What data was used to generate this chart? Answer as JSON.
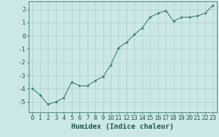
{
  "x": [
    0,
    1,
    2,
    3,
    4,
    5,
    6,
    7,
    8,
    9,
    10,
    11,
    12,
    13,
    14,
    15,
    16,
    17,
    18,
    19,
    20,
    21,
    22,
    23
  ],
  "y": [
    -4.0,
    -4.5,
    -5.2,
    -5.0,
    -4.7,
    -3.5,
    -3.8,
    -3.8,
    -3.4,
    -3.1,
    -2.2,
    -0.9,
    -0.5,
    0.1,
    0.6,
    1.4,
    1.7,
    1.9,
    1.1,
    1.4,
    1.4,
    1.5,
    1.7,
    2.3
  ],
  "line_color": "#2e7d6e",
  "marker": "+",
  "marker_size": 3,
  "bg_color": "#cce8e6",
  "grid_color": "#aaccca",
  "xlabel": "Humidex (Indice chaleur)",
  "xlim": [
    -0.5,
    23.5
  ],
  "ylim": [
    -5.8,
    2.6
  ],
  "yticks": [
    -5,
    -4,
    -3,
    -2,
    -1,
    0,
    1,
    2
  ],
  "xticks": [
    0,
    1,
    2,
    3,
    4,
    5,
    6,
    7,
    8,
    9,
    10,
    11,
    12,
    13,
    14,
    15,
    16,
    17,
    18,
    19,
    20,
    21,
    22,
    23
  ],
  "xlabel_color": "#1a5c52",
  "tick_color": "#1a5c52",
  "tick_fontsize": 6.5,
  "xlabel_fontsize": 7.5
}
